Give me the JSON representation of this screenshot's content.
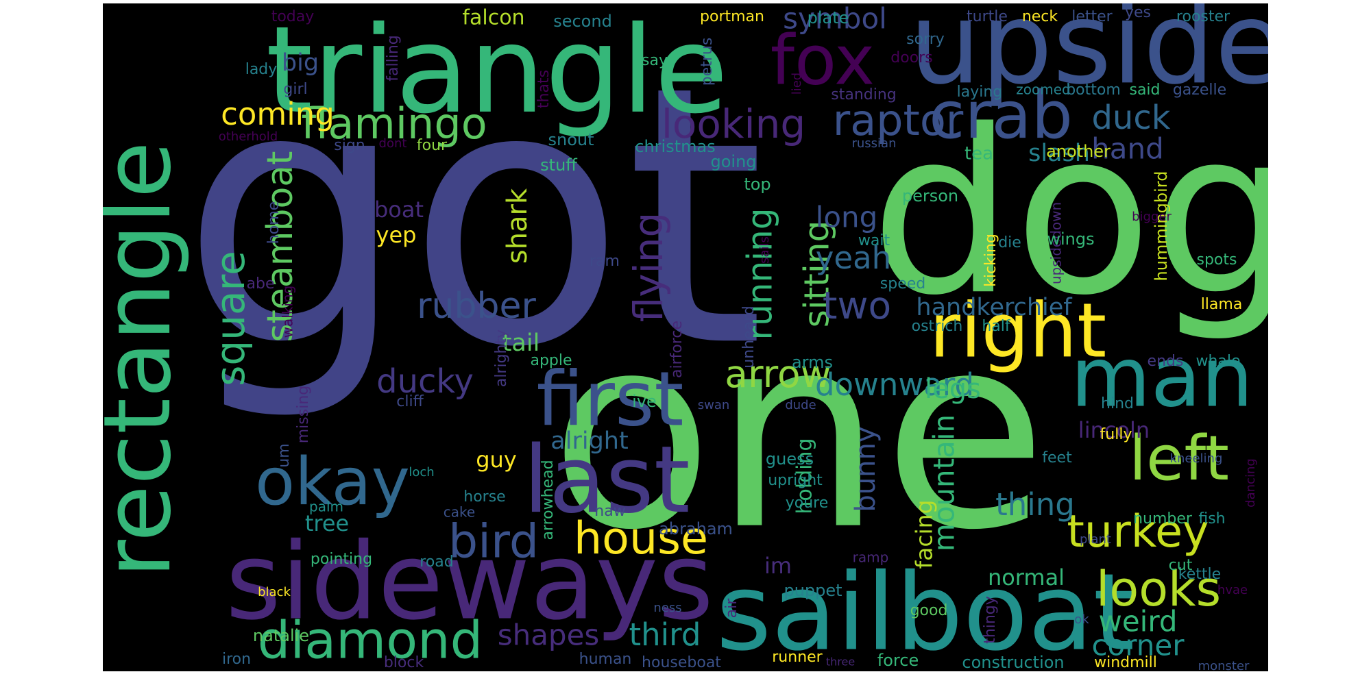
{
  "word_cloud": {
    "background": "#000000",
    "words": [
      {
        "text": "got",
        "color": "#414487"
      },
      {
        "text": "one",
        "color": "#5ec962"
      },
      {
        "text": "dog",
        "color": "#5ec962"
      },
      {
        "text": "triangle",
        "color": "#35b779"
      },
      {
        "text": "upside",
        "color": "#3b528b"
      },
      {
        "text": "sideways",
        "color": "#482878"
      },
      {
        "text": "sailboat",
        "color": "#21918c"
      },
      {
        "text": "rectangle",
        "color": "#35b779"
      },
      {
        "text": "last",
        "color": "#443983"
      },
      {
        "text": "man",
        "color": "#21918c"
      },
      {
        "text": "right",
        "color": "#fde725"
      },
      {
        "text": "first",
        "color": "#3b528b"
      },
      {
        "text": "fox",
        "color": "#440154"
      },
      {
        "text": "okay",
        "color": "#31688e"
      },
      {
        "text": "left",
        "color": "#90d743"
      },
      {
        "text": "crab",
        "color": "#3b528b"
      },
      {
        "text": "diamond",
        "color": "#35b779"
      },
      {
        "text": "turkey",
        "color": "#c8e020"
      },
      {
        "text": "looks",
        "color": "#b5de2b"
      },
      {
        "text": "bird",
        "color": "#3b528b"
      },
      {
        "text": "house",
        "color": "#fde725"
      },
      {
        "text": "flamingo",
        "color": "#5ec962"
      },
      {
        "text": "raptor",
        "color": "#3b528b"
      },
      {
        "text": "looking",
        "color": "#482878"
      },
      {
        "text": "square",
        "color": "#35b779"
      },
      {
        "text": "steamboat",
        "color": "#5ec962"
      },
      {
        "text": "arrow",
        "color": "#90d743"
      },
      {
        "text": "flying",
        "color": "#472d7b"
      },
      {
        "text": "rubber",
        "color": "#3b528b"
      },
      {
        "text": "running",
        "color": "#35b779"
      },
      {
        "text": "sitting",
        "color": "#5ec962"
      },
      {
        "text": "ducky",
        "color": "#443983"
      },
      {
        "text": "two",
        "color": "#3e4989"
      },
      {
        "text": "yeah",
        "color": "#31688e"
      },
      {
        "text": "downward",
        "color": "#26828e"
      },
      {
        "text": "long",
        "color": "#3b528b"
      },
      {
        "text": "duck",
        "color": "#31688e"
      },
      {
        "text": "coming",
        "color": "#fde725"
      },
      {
        "text": "thing",
        "color": "#2a788e"
      },
      {
        "text": "mountain",
        "color": "#35b779"
      },
      {
        "text": "weird",
        "color": "#35b779"
      },
      {
        "text": "corner",
        "color": "#21918c"
      },
      {
        "text": "shapes",
        "color": "#472d7b"
      },
      {
        "text": "third",
        "color": "#21918c"
      },
      {
        "text": "bunny",
        "color": "#3b528b"
      },
      {
        "text": "legs",
        "color": "#35b779"
      },
      {
        "text": "shark",
        "color": "#b5de2b"
      },
      {
        "text": "hand",
        "color": "#3e4989"
      },
      {
        "text": "symbol",
        "color": "#3e4989"
      },
      {
        "text": "big",
        "color": "#3b528b"
      },
      {
        "text": "handkerchief",
        "color": "#31688e"
      },
      {
        "text": "lincoln",
        "color": "#482878"
      },
      {
        "text": "alright",
        "color": "#31688e"
      },
      {
        "text": "facing",
        "color": "#b5de2b"
      },
      {
        "text": "holding",
        "color": "#35b779"
      },
      {
        "text": "slash",
        "color": "#26828e"
      },
      {
        "text": "tail",
        "color": "#5ec962"
      },
      {
        "text": "boat",
        "color": "#472d7b"
      },
      {
        "text": "yep",
        "color": "#fde725"
      },
      {
        "text": "guy",
        "color": "#fde725"
      },
      {
        "text": "tree",
        "color": "#21918c"
      },
      {
        "text": "normal",
        "color": "#35b779"
      },
      {
        "text": "im",
        "color": "#472d7b"
      },
      {
        "text": "falcon",
        "color": "#b5de2b"
      },
      {
        "text": "today",
        "color": "#440154"
      },
      {
        "text": "second",
        "color": "#26828e"
      },
      {
        "text": "portman",
        "color": "#fde725"
      },
      {
        "text": "plate",
        "color": "#21918c"
      },
      {
        "text": "turtle",
        "color": "#3e4989"
      },
      {
        "text": "neck",
        "color": "#fde725"
      },
      {
        "text": "letter",
        "color": "#3b528b"
      },
      {
        "text": "yes",
        "color": "#3e4989"
      },
      {
        "text": "rooster",
        "color": "#26828e"
      },
      {
        "text": "sorry",
        "color": "#31688e"
      },
      {
        "text": "doors",
        "color": "#440154"
      },
      {
        "text": "lady",
        "color": "#26828e"
      },
      {
        "text": "say",
        "color": "#35b779"
      },
      {
        "text": "petrus",
        "color": "#3b528b"
      },
      {
        "text": "girl",
        "color": "#3e4989"
      },
      {
        "text": "falling",
        "color": "#482878"
      },
      {
        "text": "lied",
        "color": "#440154"
      },
      {
        "text": "standing",
        "color": "#46327e"
      },
      {
        "text": "laying",
        "color": "#2a788e"
      },
      {
        "text": "zoomed",
        "color": "#26828e"
      },
      {
        "text": "bottom",
        "color": "#2a788e"
      },
      {
        "text": "said",
        "color": "#35b779"
      },
      {
        "text": "gazelle",
        "color": "#3b528b"
      },
      {
        "text": "thats",
        "color": "#440154"
      },
      {
        "text": "otherhold",
        "color": "#440154"
      },
      {
        "text": "sign",
        "color": "#3e4989"
      },
      {
        "text": "dont",
        "color": "#440154"
      },
      {
        "text": "four",
        "color": "#90d743"
      },
      {
        "text": "snout",
        "color": "#26828e"
      },
      {
        "text": "christmas",
        "color": "#21918c"
      },
      {
        "text": "russian",
        "color": "#3b528b"
      },
      {
        "text": "tea",
        "color": "#35b779"
      },
      {
        "text": "another",
        "color": "#c8e020"
      },
      {
        "text": "stuff",
        "color": "#35b779"
      },
      {
        "text": "going",
        "color": "#21918c"
      },
      {
        "text": "top",
        "color": "#35b779"
      },
      {
        "text": "person",
        "color": "#35b779"
      },
      {
        "text": "hummingbird",
        "color": "#c8e020"
      },
      {
        "text": "home",
        "color": "#3e4989"
      },
      {
        "text": "alrighty",
        "color": "#443983"
      },
      {
        "text": "airforce",
        "color": "#482878"
      },
      {
        "text": "wait",
        "color": "#21918c"
      },
      {
        "text": "die",
        "color": "#26828e"
      },
      {
        "text": "kicking",
        "color": "#fde725"
      },
      {
        "text": "upsidedown",
        "color": "#482878"
      },
      {
        "text": "wings",
        "color": "#35b779"
      },
      {
        "text": "bigger",
        "color": "#440154"
      },
      {
        "text": "sails",
        "color": "#440154"
      },
      {
        "text": "spots",
        "color": "#35b779"
      },
      {
        "text": "ram",
        "color": "#3e4989"
      },
      {
        "text": "abe",
        "color": "#482878"
      },
      {
        "text": "walking",
        "color": "#440154"
      },
      {
        "text": "speed",
        "color": "#26828e"
      },
      {
        "text": "llama",
        "color": "#fde725"
      },
      {
        "text": "ostrich",
        "color": "#26828e"
      },
      {
        "text": "half",
        "color": "#21918c"
      },
      {
        "text": "unheard",
        "color": "#3e4989"
      },
      {
        "text": "apple",
        "color": "#35b779"
      },
      {
        "text": "arms",
        "color": "#21918c"
      },
      {
        "text": "ends",
        "color": "#443983"
      },
      {
        "text": "whale",
        "color": "#21918c"
      },
      {
        "text": "cliff",
        "color": "#3e4989"
      },
      {
        "text": "ive",
        "color": "#35b779"
      },
      {
        "text": "swan",
        "color": "#3e4989"
      },
      {
        "text": "dude",
        "color": "#3e4989"
      },
      {
        "text": "hind",
        "color": "#26828e"
      },
      {
        "text": "missing",
        "color": "#482878"
      },
      {
        "text": "um",
        "color": "#3b528b"
      },
      {
        "text": "fully",
        "color": "#fde725"
      },
      {
        "text": "guess",
        "color": "#21918c"
      },
      {
        "text": "feet",
        "color": "#26828e"
      },
      {
        "text": "kneeling",
        "color": "#3b528b"
      },
      {
        "text": "upright",
        "color": "#21918c"
      },
      {
        "text": "dancing",
        "color": "#440154"
      },
      {
        "text": "loch",
        "color": "#21918c"
      },
      {
        "text": "arrowhead",
        "color": "#35b779"
      },
      {
        "text": "youre",
        "color": "#21918c"
      },
      {
        "text": "horse",
        "color": "#26828e"
      },
      {
        "text": "cake",
        "color": "#3b528b"
      },
      {
        "text": "palm",
        "color": "#21918c"
      },
      {
        "text": "naw",
        "color": "#3e4989"
      },
      {
        "text": "abraham",
        "color": "#3b528b"
      },
      {
        "text": "number",
        "color": "#35b779"
      },
      {
        "text": "fish",
        "color": "#21918c"
      },
      {
        "text": "pointing",
        "color": "#35b779"
      },
      {
        "text": "road",
        "color": "#26828e"
      },
      {
        "text": "kettle",
        "color": "#26828e"
      },
      {
        "text": "ramp",
        "color": "#482878"
      },
      {
        "text": "plant",
        "color": "#3e4989"
      },
      {
        "text": "cut",
        "color": "#35b779"
      },
      {
        "text": "hvae",
        "color": "#440154"
      },
      {
        "text": "black",
        "color": "#fde725"
      },
      {
        "text": "puppet",
        "color": "#26828e"
      },
      {
        "text": "air",
        "color": "#482878"
      },
      {
        "text": "ness",
        "color": "#3b528b"
      },
      {
        "text": "thingy",
        "color": "#482878"
      },
      {
        "text": "good",
        "color": "#5ec962"
      },
      {
        "text": "ok",
        "color": "#3b528b"
      },
      {
        "text": "natalie",
        "color": "#5ec962"
      },
      {
        "text": "iron",
        "color": "#31688e"
      },
      {
        "text": "block",
        "color": "#472d7b"
      },
      {
        "text": "human",
        "color": "#3b528b"
      },
      {
        "text": "houseboat",
        "color": "#3b528b"
      },
      {
        "text": "runner",
        "color": "#fde725"
      },
      {
        "text": "three",
        "color": "#482878"
      },
      {
        "text": "force",
        "color": "#35b779"
      },
      {
        "text": "construction",
        "color": "#21918c"
      },
      {
        "text": "windmill",
        "color": "#fde725"
      },
      {
        "text": "monster",
        "color": "#3b528b"
      }
    ]
  }
}
